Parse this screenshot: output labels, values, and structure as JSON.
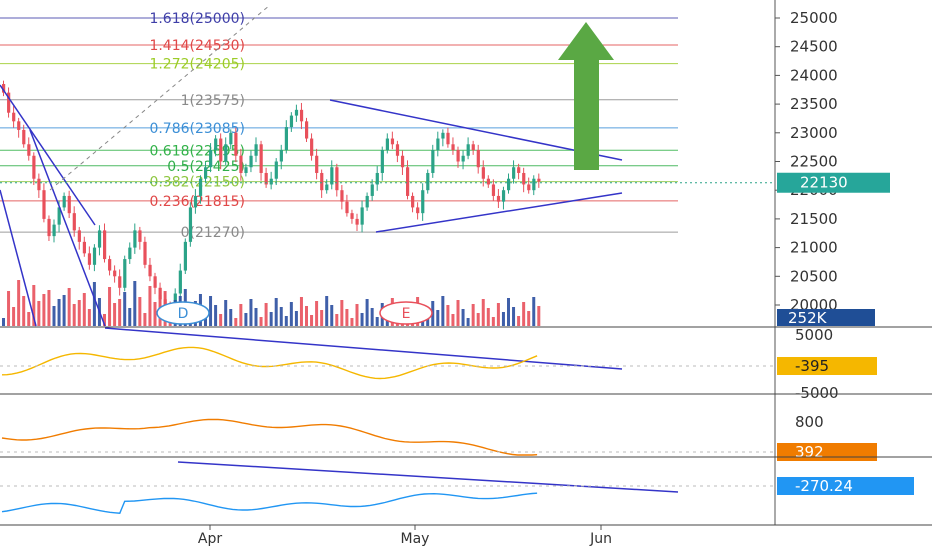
{
  "chart_data": {
    "type": "candlestick",
    "x_labels": [
      "Apr",
      "May",
      "Jun"
    ],
    "y_ticks": [
      25000,
      24500,
      24000,
      23500,
      23000,
      22500,
      22000,
      21500,
      21000,
      20500,
      20000
    ],
    "y_range": [
      19800,
      25100
    ],
    "last_price": "22130",
    "volume_label": "252K",
    "fib_levels": [
      {
        "label": "1.618(25000)",
        "ratio": 1.618,
        "price": 25000,
        "color": "#3f3fa8"
      },
      {
        "label": "1.414(24530)",
        "ratio": 1.414,
        "price": 24530,
        "color": "#e04848"
      },
      {
        "label": "1.272(24205)",
        "ratio": 1.272,
        "price": 24205,
        "color": "#9ccc28"
      },
      {
        "label": "1(23575)",
        "ratio": 1,
        "price": 23575,
        "color": "#8a8a8a"
      },
      {
        "label": "0.786(23085)",
        "ratio": 0.786,
        "price": 23085,
        "color": "#3c8fd6"
      },
      {
        "label": "0.618(22695)",
        "ratio": 0.618,
        "price": 22695,
        "color": "#33b24a"
      },
      {
        "label": "0.5(22425)",
        "ratio": 0.5,
        "price": 22425,
        "color": "#2fae4a"
      },
      {
        "label": "0.382(22150)",
        "ratio": 0.382,
        "price": 22150,
        "color": "#8dc63f"
      },
      {
        "label": "0.236(21815)",
        "ratio": 0.236,
        "price": 21815,
        "color": "#e04848"
      },
      {
        "label": "0(21270)",
        "ratio": 0,
        "price": 21270,
        "color": "#8a8a8a"
      }
    ],
    "event_markers": [
      "D",
      "E"
    ],
    "indicators": [
      {
        "name": "oscillator-1",
        "ticks": [
          "5000",
          "-5000"
        ],
        "value": "-395",
        "color": "#f5b700"
      },
      {
        "name": "oscillator-2",
        "ticks": [
          "800"
        ],
        "value": "392",
        "color": "#f07c00"
      },
      {
        "name": "oscillator-3",
        "ticks": [],
        "value": "-270.24",
        "color": "#2196f3"
      }
    ],
    "arrow_color": "#5aa844",
    "trendline_color": "#3434c8",
    "up_color": "#2ba388",
    "down_color": "#e8505b"
  }
}
